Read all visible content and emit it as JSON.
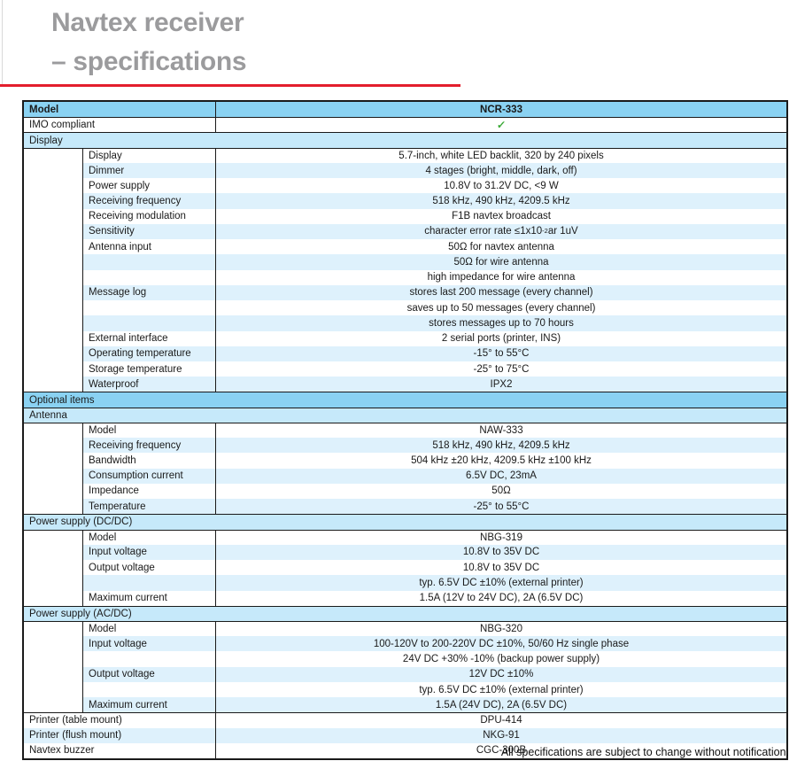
{
  "title": {
    "line1": "Navtex receiver",
    "line2": "– specifications"
  },
  "footer": "All specifications are subject to change without notification.",
  "colors": {
    "header_blue": "#8ad2f2",
    "section_blue": "#c6e9fa",
    "row_blue": "#def1fc",
    "border": "#1a1a1a",
    "check_green": "#3aa935",
    "accent_red": "#e31e2d",
    "title_gray": "#9b9b9d"
  },
  "table": {
    "rows": [
      {
        "type": "header",
        "label": "Model",
        "value": "NCR-333"
      },
      {
        "type": "kv",
        "label": "IMO compliant",
        "value": "✓",
        "check": true,
        "bt": true
      },
      {
        "type": "section",
        "label": "Display",
        "variant": "light",
        "bt": true
      },
      {
        "type": "detail",
        "label": "Display",
        "value": "5.7-inch, white LED backlit, 320 by 240 pixels",
        "bt": true
      },
      {
        "type": "detail",
        "label": "Dimmer",
        "value": "4 stages (bright, middle, dark, off)"
      },
      {
        "type": "detail",
        "label": "Power supply",
        "value": "10.8V to 31.2V DC, <9 W"
      },
      {
        "type": "detail",
        "label": "Receiving frequency",
        "value": "518 kHz, 490 kHz, 4209.5 kHz"
      },
      {
        "type": "detail",
        "label": "Receiving modulation",
        "value": "F1B navtex broadcast"
      },
      {
        "type": "detail",
        "label": "Sensitivity",
        "value_parts": [
          "character error rate ≤1x10",
          "-2",
          " ar 1uV"
        ]
      },
      {
        "type": "detail",
        "label": "Antenna input",
        "value": "50Ω for navtex antenna"
      },
      {
        "type": "detail",
        "label": "",
        "value": "50Ω for wire antenna"
      },
      {
        "type": "detail",
        "label": "",
        "value": "high impedance for wire antenna"
      },
      {
        "type": "detail",
        "label": "Message log",
        "value": "stores last 200 message (every channel)"
      },
      {
        "type": "detail",
        "label": "",
        "value": "saves up to 50 messages (every channel)"
      },
      {
        "type": "detail",
        "label": "",
        "value": "stores messages up to 70 hours"
      },
      {
        "type": "detail",
        "label": "External interface",
        "value": "2 serial ports (printer, INS)"
      },
      {
        "type": "detail",
        "label": "Operating temperature",
        "value": "-15° to 55°C"
      },
      {
        "type": "detail",
        "label": "Storage temperature",
        "value": "-25° to 75°C"
      },
      {
        "type": "detail",
        "label": "Waterproof",
        "value": "IPX2"
      },
      {
        "type": "section",
        "label": "Optional items",
        "variant": "dark",
        "bt": true
      },
      {
        "type": "section",
        "label": "Antenna",
        "variant": "light",
        "bt": true
      },
      {
        "type": "detail",
        "label": "Model",
        "value": "NAW-333",
        "bt": true
      },
      {
        "type": "detail",
        "label": "Receiving frequency",
        "value": "518 kHz, 490 kHz, 4209.5 kHz"
      },
      {
        "type": "detail",
        "label": "Bandwidth",
        "value": "504 kHz ±20 kHz, 4209.5 kHz ±100 kHz"
      },
      {
        "type": "detail",
        "label": "Consumption current",
        "value": "6.5V DC, 23mA"
      },
      {
        "type": "detail",
        "label": "Impedance",
        "value": "50Ω"
      },
      {
        "type": "detail",
        "label": "Temperature",
        "value": "-25° to 55°C"
      },
      {
        "type": "section",
        "label": "Power supply (DC/DC)",
        "variant": "light",
        "bt": true
      },
      {
        "type": "detail",
        "label": "Model",
        "value": "NBG-319",
        "bt": true
      },
      {
        "type": "detail",
        "label": "Input voltage",
        "value": "10.8V to 35V DC"
      },
      {
        "type": "detail",
        "label": "Output voltage",
        "value": "10.8V to 35V DC"
      },
      {
        "type": "detail",
        "label": "",
        "value": "typ. 6.5V DC ±10% (external printer)"
      },
      {
        "type": "detail",
        "label": "Maximum current",
        "value": "1.5A (12V to 24V DC), 2A (6.5V DC)"
      },
      {
        "type": "section",
        "label": "Power supply (AC/DC)",
        "variant": "light",
        "bt": true
      },
      {
        "type": "detail",
        "label": "Model",
        "value": "NBG-320",
        "bt": true
      },
      {
        "type": "detail",
        "label": "Input voltage",
        "value": "100-120V to 200-220V DC ±10%, 50/60 Hz single phase"
      },
      {
        "type": "detail",
        "label": "",
        "value": "24V DC +30% -10% (backup power supply)"
      },
      {
        "type": "detail",
        "label": "Output voltage",
        "value": "12V DC ±10%"
      },
      {
        "type": "detail",
        "label": "",
        "value": "typ. 6.5V DC ±10% (external printer)"
      },
      {
        "type": "detail",
        "label": "Maximum current",
        "value": "1.5A (24V DC), 2A (6.5V DC)"
      },
      {
        "type": "kv",
        "label": "Printer (table mount)",
        "value": "DPU-414",
        "bt": true
      },
      {
        "type": "kv",
        "label": "Printer (flush mount)",
        "value": "NKG-91"
      },
      {
        "type": "kv",
        "label": "Navtex buzzer",
        "value": "CGC-300B"
      }
    ]
  }
}
